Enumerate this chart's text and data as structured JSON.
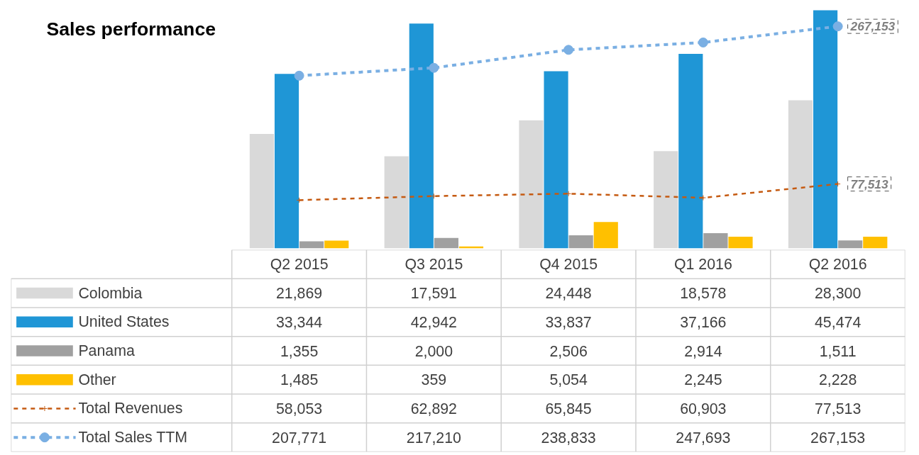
{
  "chart_data": {
    "type": "bar",
    "title": "Sales performance",
    "categories": [
      "Q2 2015",
      "Q3 2015",
      "Q4 2015",
      "Q1 2016",
      "Q2 2016"
    ],
    "series": [
      {
        "name": "Colombia",
        "color": "#d9d9d9",
        "values": [
          21869,
          17591,
          24448,
          18578,
          28300
        ],
        "value_labels": [
          "21,869",
          "17,591",
          "24,448",
          "18,578",
          "28,300"
        ]
      },
      {
        "name": "United States",
        "color": "#1f96d6",
        "values": [
          33344,
          42942,
          33837,
          37166,
          45474
        ],
        "value_labels": [
          "33,344",
          "42,942",
          "33,837",
          "37,166",
          "45,474"
        ]
      },
      {
        "name": "Panama",
        "color": "#a0a0a0",
        "values": [
          1355,
          2000,
          2506,
          2914,
          1511
        ],
        "value_labels": [
          "1,355",
          "2,000",
          "2,506",
          "2,914",
          "1,511"
        ]
      },
      {
        "name": "Other",
        "color": "#ffc000",
        "values": [
          1485,
          359,
          5054,
          2245,
          2228
        ],
        "value_labels": [
          "1,485",
          "359",
          "5,054",
          "2,245",
          "2,228"
        ]
      },
      {
        "name": "Total Revenues",
        "type": "line",
        "axis": "y2",
        "color": "#c55a11",
        "line_style": "dashed",
        "marker": "cross",
        "values": [
          58053,
          62892,
          65845,
          60903,
          77513
        ],
        "value_labels": [
          "58,053",
          "62,892",
          "65,845",
          "60,903",
          "77,513"
        ]
      },
      {
        "name": "Total Sales TTM",
        "type": "line",
        "axis": "y2",
        "color": "#7aafe3",
        "line_style": "dashed",
        "marker": "circle",
        "values": [
          207771,
          217210,
          238833,
          247693,
          267153
        ],
        "value_labels": [
          "207,771",
          "217,210",
          "238,833",
          "247,693",
          "267,153"
        ]
      }
    ],
    "tick_labels": false,
    "grid": false,
    "legend": "bottom",
    "annotations": [
      "267,153",
      "77,513"
    ]
  }
}
